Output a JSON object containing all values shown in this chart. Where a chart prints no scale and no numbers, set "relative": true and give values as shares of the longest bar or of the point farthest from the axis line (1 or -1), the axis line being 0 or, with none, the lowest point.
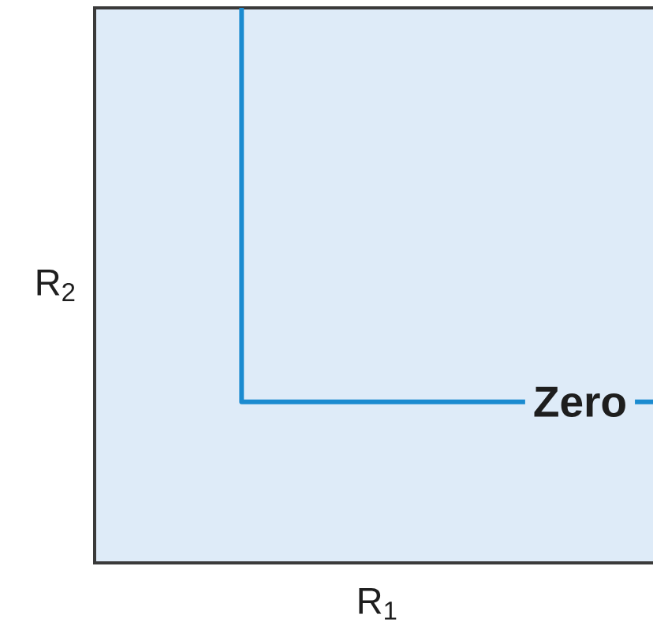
{
  "chart_data": {
    "type": "step",
    "relative": true,
    "categories": [
      null,
      null
    ],
    "values": [
      1,
      0.29
    ],
    "color": "#1b8bd0",
    "xlabel": "R$_{1}$",
    "ylabel": "R$_{2}$",
    "annotations": [
      {
        "text": "Zero",
        "y": 0.29
      }
    ]
  }
}
